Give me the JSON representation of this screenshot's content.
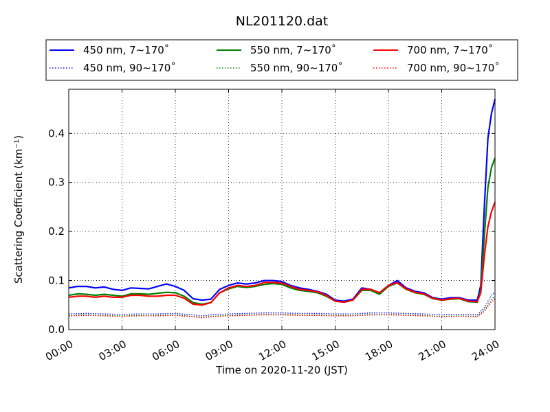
{
  "chart_data": {
    "type": "line",
    "title": "NL201120.dat",
    "xlabel": "Time on 2020-11-20 (JST)",
    "ylabel": "Scattering Coefficient (km⁻¹)",
    "xlim": [
      0,
      24
    ],
    "ylim": [
      0,
      0.49
    ],
    "grid": true,
    "legend_position": "top",
    "x_ticks": [
      0,
      3,
      6,
      9,
      12,
      15,
      18,
      21,
      24
    ],
    "x_tick_labels": [
      "00:00",
      "03:00",
      "06:00",
      "09:00",
      "12:00",
      "15:00",
      "18:00",
      "21:00",
      "24:00"
    ],
    "y_ticks": [
      0,
      0.1,
      0.2,
      0.3,
      0.4
    ],
    "y_tick_labels": [
      "0.0",
      "0.1",
      "0.2",
      "0.3",
      "0.4"
    ],
    "series": [
      {
        "name": "450 nm, 7∼170˚",
        "color": "#0000ff",
        "style": "solid",
        "x": [
          0.0,
          0.5,
          1.0,
          1.5,
          2.0,
          2.5,
          3.0,
          3.5,
          4.0,
          4.5,
          5.0,
          5.5,
          6.0,
          6.5,
          7.0,
          7.5,
          8.0,
          8.5,
          9.0,
          9.5,
          10.0,
          10.5,
          11.0,
          11.5,
          12.0,
          12.5,
          13.0,
          13.5,
          14.0,
          14.5,
          15.0,
          15.5,
          16.0,
          16.5,
          17.0,
          17.5,
          18.0,
          18.5,
          19.0,
          19.5,
          20.0,
          20.5,
          21.0,
          21.5,
          22.0,
          22.5,
          23.0,
          23.2,
          23.4,
          23.6,
          23.8,
          24.0
        ],
        "y": [
          0.085,
          0.088,
          0.088,
          0.085,
          0.087,
          0.082,
          0.08,
          0.085,
          0.084,
          0.083,
          0.088,
          0.093,
          0.088,
          0.08,
          0.063,
          0.06,
          0.062,
          0.082,
          0.09,
          0.095,
          0.093,
          0.095,
          0.1,
          0.1,
          0.098,
          0.09,
          0.085,
          0.082,
          0.078,
          0.072,
          0.06,
          0.058,
          0.062,
          0.085,
          0.082,
          0.075,
          0.09,
          0.1,
          0.085,
          0.078,
          0.075,
          0.065,
          0.062,
          0.065,
          0.065,
          0.06,
          0.06,
          0.09,
          0.25,
          0.39,
          0.44,
          0.47
        ]
      },
      {
        "name": "550 nm, 7∼170˚",
        "color": "#008000",
        "style": "solid",
        "x": [
          0.0,
          0.5,
          1.0,
          1.5,
          2.0,
          2.5,
          3.0,
          3.5,
          4.0,
          4.5,
          5.0,
          5.5,
          6.0,
          6.5,
          7.0,
          7.5,
          8.0,
          8.5,
          9.0,
          9.5,
          10.0,
          10.5,
          11.0,
          11.5,
          12.0,
          12.5,
          13.0,
          13.5,
          14.0,
          14.5,
          15.0,
          15.5,
          16.0,
          16.5,
          17.0,
          17.5,
          18.0,
          18.5,
          19.0,
          19.5,
          20.0,
          20.5,
          21.0,
          21.5,
          22.0,
          22.5,
          23.0,
          23.2,
          23.4,
          23.6,
          23.8,
          24.0
        ],
        "y": [
          0.07,
          0.073,
          0.072,
          0.07,
          0.072,
          0.07,
          0.068,
          0.073,
          0.073,
          0.072,
          0.074,
          0.076,
          0.075,
          0.068,
          0.055,
          0.052,
          0.055,
          0.075,
          0.083,
          0.088,
          0.086,
          0.088,
          0.092,
          0.094,
          0.092,
          0.085,
          0.08,
          0.078,
          0.075,
          0.068,
          0.058,
          0.056,
          0.06,
          0.08,
          0.08,
          0.072,
          0.088,
          0.095,
          0.082,
          0.075,
          0.072,
          0.063,
          0.06,
          0.062,
          0.063,
          0.057,
          0.056,
          0.08,
          0.19,
          0.29,
          0.33,
          0.35
        ]
      },
      {
        "name": "700 nm, 7∼170˚",
        "color": "#ff0000",
        "style": "solid",
        "x": [
          0.0,
          0.5,
          1.0,
          1.5,
          2.0,
          2.5,
          3.0,
          3.5,
          4.0,
          4.5,
          5.0,
          5.5,
          6.0,
          6.5,
          7.0,
          7.5,
          8.0,
          8.5,
          9.0,
          9.5,
          10.0,
          10.5,
          11.0,
          11.5,
          12.0,
          12.5,
          13.0,
          13.5,
          14.0,
          14.5,
          15.0,
          15.5,
          16.0,
          16.5,
          17.0,
          17.5,
          18.0,
          18.5,
          19.0,
          19.5,
          20.0,
          20.5,
          21.0,
          21.5,
          22.0,
          22.5,
          23.0,
          23.2,
          23.4,
          23.6,
          23.8,
          24.0
        ],
        "y": [
          0.066,
          0.068,
          0.068,
          0.066,
          0.068,
          0.066,
          0.066,
          0.07,
          0.07,
          0.068,
          0.068,
          0.07,
          0.07,
          0.064,
          0.052,
          0.05,
          0.055,
          0.075,
          0.085,
          0.09,
          0.088,
          0.09,
          0.096,
          0.096,
          0.095,
          0.088,
          0.082,
          0.08,
          0.077,
          0.07,
          0.058,
          0.056,
          0.06,
          0.082,
          0.082,
          0.075,
          0.09,
          0.096,
          0.083,
          0.076,
          0.073,
          0.064,
          0.06,
          0.063,
          0.064,
          0.058,
          0.057,
          0.075,
          0.15,
          0.21,
          0.24,
          0.26
        ]
      },
      {
        "name": "450 nm, 90∼170˚",
        "color": "#0000ff",
        "style": "dotted",
        "x": [
          0.0,
          1.0,
          2.0,
          3.0,
          4.0,
          5.0,
          6.0,
          7.0,
          7.5,
          8.0,
          9.0,
          10.0,
          11.0,
          12.0,
          13.0,
          14.0,
          15.0,
          16.0,
          17.0,
          18.0,
          19.0,
          20.0,
          21.0,
          22.0,
          23.0,
          23.4,
          23.8,
          24.0
        ],
        "y": [
          0.032,
          0.033,
          0.032,
          0.031,
          0.032,
          0.032,
          0.033,
          0.03,
          0.028,
          0.03,
          0.032,
          0.033,
          0.034,
          0.034,
          0.033,
          0.033,
          0.032,
          0.032,
          0.034,
          0.034,
          0.033,
          0.032,
          0.03,
          0.031,
          0.03,
          0.045,
          0.07,
          0.077
        ]
      },
      {
        "name": "550 nm, 90∼170˚",
        "color": "#008000",
        "style": "dotted",
        "x": [
          0.0,
          1.0,
          2.0,
          3.0,
          4.0,
          5.0,
          6.0,
          7.0,
          7.5,
          8.0,
          9.0,
          10.0,
          11.0,
          12.0,
          13.0,
          14.0,
          15.0,
          16.0,
          17.0,
          18.0,
          19.0,
          20.0,
          21.0,
          22.0,
          23.0,
          23.4,
          23.8,
          24.0
        ],
        "y": [
          0.029,
          0.03,
          0.029,
          0.028,
          0.029,
          0.029,
          0.03,
          0.027,
          0.025,
          0.027,
          0.029,
          0.03,
          0.031,
          0.031,
          0.03,
          0.03,
          0.029,
          0.029,
          0.031,
          0.031,
          0.03,
          0.029,
          0.027,
          0.028,
          0.027,
          0.04,
          0.062,
          0.068
        ]
      },
      {
        "name": "700 nm, 90∼170˚",
        "color": "#ff0000",
        "style": "dotted",
        "x": [
          0.0,
          1.0,
          2.0,
          3.0,
          4.0,
          5.0,
          6.0,
          7.0,
          7.5,
          8.0,
          9.0,
          10.0,
          11.0,
          12.0,
          13.0,
          14.0,
          15.0,
          16.0,
          17.0,
          18.0,
          19.0,
          20.0,
          21.0,
          22.0,
          23.0,
          23.4,
          23.8,
          24.0
        ],
        "y": [
          0.028,
          0.029,
          0.028,
          0.027,
          0.028,
          0.028,
          0.029,
          0.026,
          0.024,
          0.026,
          0.028,
          0.029,
          0.03,
          0.03,
          0.029,
          0.029,
          0.028,
          0.028,
          0.03,
          0.03,
          0.029,
          0.028,
          0.026,
          0.027,
          0.026,
          0.037,
          0.057,
          0.063
        ]
      }
    ]
  }
}
